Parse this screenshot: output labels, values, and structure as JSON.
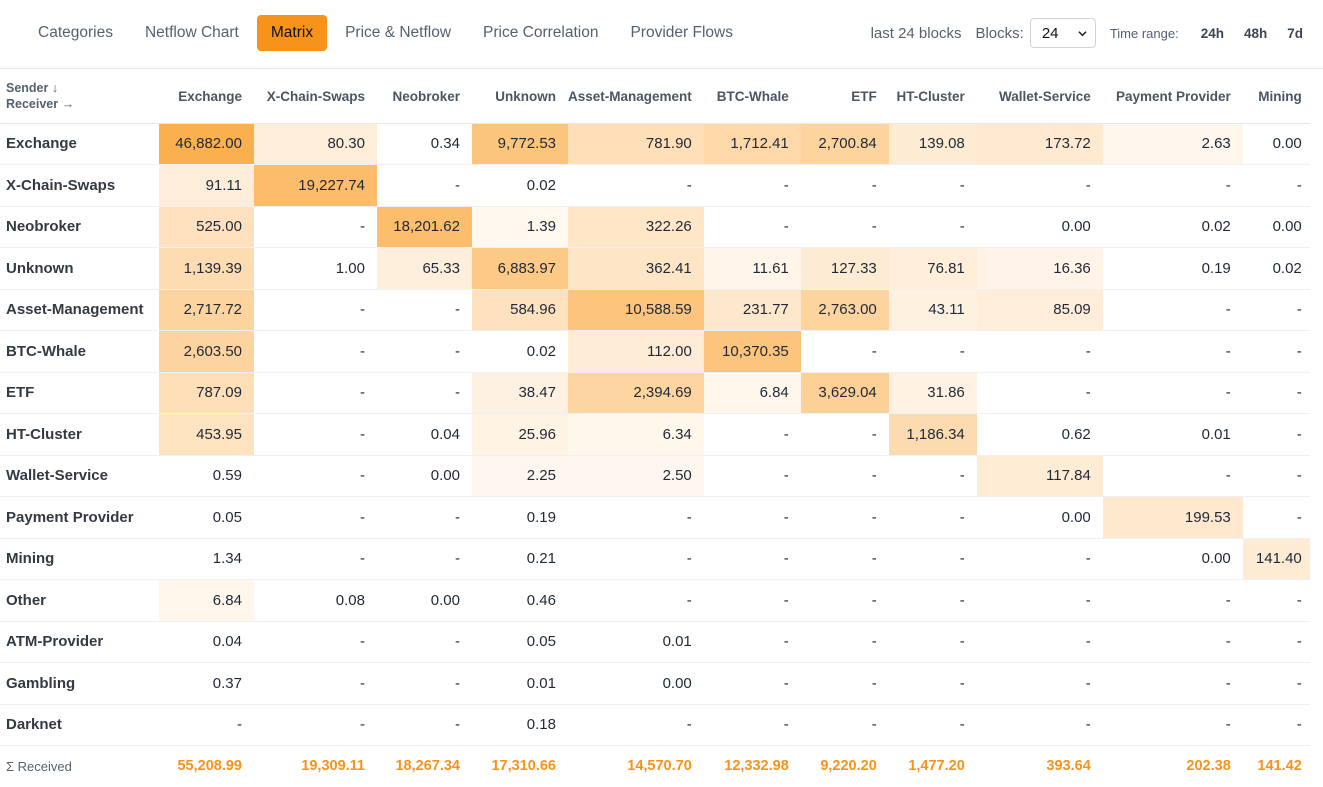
{
  "tabs": [
    "Categories",
    "Netflow Chart",
    "Matrix",
    "Price & Netflow",
    "Price Correlation",
    "Provider Flows"
  ],
  "active_tab": "Matrix",
  "controls": {
    "last_blocks_text": "last 24 blocks",
    "blocks_label": "Blocks:",
    "blocks_value": "24",
    "time_range_label": "Time range:",
    "time_ranges": [
      "24h",
      "48h",
      "7d"
    ]
  },
  "colors": {
    "accent": "#f7931a",
    "heat_max": "#fbb04f",
    "heat_min": "#fff8f0"
  },
  "matrix": {
    "corner_sender": "Sender ↓",
    "corner_receiver": "Receiver →",
    "columns": [
      "Exchange",
      "X-Chain-Swaps",
      "Neobroker",
      "Unknown",
      "Asset-Management",
      "BTC-Whale",
      "ETF",
      "HT-Cluster",
      "Wallet-Service",
      "Payment Provider",
      "Mining"
    ],
    "rows": [
      {
        "label": "Exchange",
        "cells": [
          "46,882.00",
          "80.30",
          "0.34",
          "9,772.53",
          "781.90",
          "1,712.41",
          "2,700.84",
          "139.08",
          "173.72",
          "2.63",
          "0.00"
        ]
      },
      {
        "label": "X-Chain-Swaps",
        "cells": [
          "91.11",
          "19,227.74",
          "-",
          "0.02",
          "-",
          "-",
          "-",
          "-",
          "-",
          "-",
          "-"
        ]
      },
      {
        "label": "Neobroker",
        "cells": [
          "525.00",
          "-",
          "18,201.62",
          "1.39",
          "322.26",
          "-",
          "-",
          "-",
          "0.00",
          "0.02",
          "0.00"
        ]
      },
      {
        "label": "Unknown",
        "cells": [
          "1,139.39",
          "1.00",
          "65.33",
          "6,883.97",
          "362.41",
          "11.61",
          "127.33",
          "76.81",
          "16.36",
          "0.19",
          "0.02"
        ]
      },
      {
        "label": "Asset-Management",
        "cells": [
          "2,717.72",
          "-",
          "-",
          "584.96",
          "10,588.59",
          "231.77",
          "2,763.00",
          "43.11",
          "85.09",
          "-",
          "-"
        ]
      },
      {
        "label": "BTC-Whale",
        "cells": [
          "2,603.50",
          "-",
          "-",
          "0.02",
          "112.00",
          "10,370.35",
          "-",
          "-",
          "-",
          "-",
          "-"
        ]
      },
      {
        "label": "ETF",
        "cells": [
          "787.09",
          "-",
          "-",
          "38.47",
          "2,394.69",
          "6.84",
          "3,629.04",
          "31.86",
          "-",
          "-",
          "-"
        ]
      },
      {
        "label": "HT-Cluster",
        "cells": [
          "453.95",
          "-",
          "0.04",
          "25.96",
          "6.34",
          "-",
          "-",
          "1,186.34",
          "0.62",
          "0.01",
          "-"
        ]
      },
      {
        "label": "Wallet-Service",
        "cells": [
          "0.59",
          "-",
          "0.00",
          "2.25",
          "2.50",
          "-",
          "-",
          "-",
          "117.84",
          "-",
          "-"
        ]
      },
      {
        "label": "Payment Provider",
        "cells": [
          "0.05",
          "-",
          "-",
          "0.19",
          "-",
          "-",
          "-",
          "-",
          "0.00",
          "199.53",
          "-"
        ]
      },
      {
        "label": "Mining",
        "cells": [
          "1.34",
          "-",
          "-",
          "0.21",
          "-",
          "-",
          "-",
          "-",
          "-",
          "0.00",
          "141.40"
        ]
      },
      {
        "label": "Other",
        "cells": [
          "6.84",
          "0.08",
          "0.00",
          "0.46",
          "-",
          "-",
          "-",
          "-",
          "-",
          "-",
          "-"
        ]
      },
      {
        "label": "ATM-Provider",
        "cells": [
          "0.04",
          "-",
          "-",
          "0.05",
          "0.01",
          "-",
          "-",
          "-",
          "-",
          "-",
          "-"
        ]
      },
      {
        "label": "Gambling",
        "cells": [
          "0.37",
          "-",
          "-",
          "0.01",
          "0.00",
          "-",
          "-",
          "-",
          "-",
          "-",
          "-"
        ]
      },
      {
        "label": "Darknet",
        "cells": [
          "-",
          "-",
          "-",
          "0.18",
          "-",
          "-",
          "-",
          "-",
          "-",
          "-",
          "-"
        ]
      }
    ],
    "totals_label": "Σ Received",
    "totals": [
      "55,208.99",
      "19,309.11",
      "18,267.34",
      "17,310.66",
      "14,570.70",
      "12,332.98",
      "9,220.20",
      "1,477.20",
      "393.64",
      "202.38",
      "141.42"
    ]
  }
}
